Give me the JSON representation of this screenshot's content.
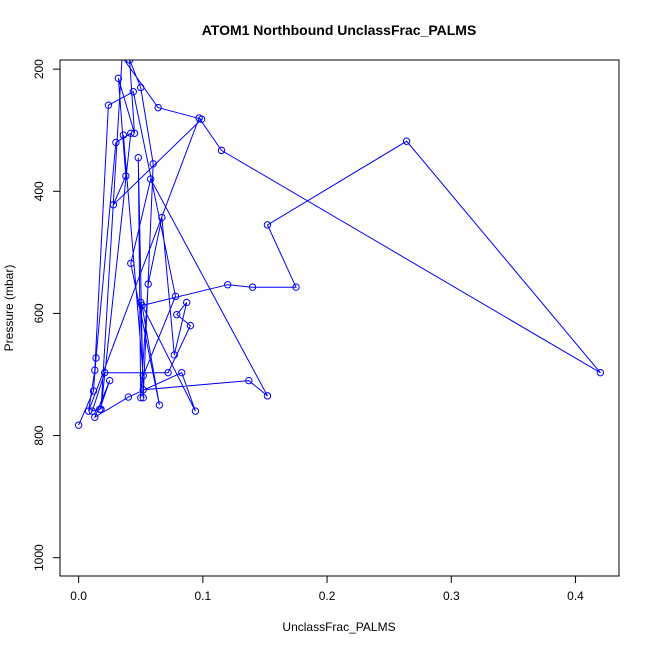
{
  "chart_data": {
    "type": "line",
    "title": "ATOM1 Northbound UnclassFrac_PALMS",
    "xlabel": "UnclassFrac_PALMS",
    "ylabel": "Pressure (mbar)",
    "xlim": [
      -0.015,
      0.435
    ],
    "ylim": [
      1030,
      185
    ],
    "y_reversed": true,
    "x_ticks": [
      0.0,
      0.1,
      0.2,
      0.3,
      0.4
    ],
    "x_tick_labels": [
      "0.0",
      "0.1",
      "0.2",
      "0.3",
      "0.4"
    ],
    "y_ticks": [
      200,
      400,
      600,
      800,
      1000
    ],
    "y_tick_labels": [
      "200",
      "400",
      "600",
      "800",
      "1000"
    ],
    "grid": false,
    "line_color": "#0000ff",
    "marker": "open-circle",
    "series": [
      {
        "x": [
          0.0,
          0.012,
          0.014,
          0.03,
          0.042,
          0.018,
          0.035,
          0.064,
          0.099,
          0.028,
          0.038,
          0.032,
          0.045,
          0.041,
          0.05,
          0.06,
          0.052,
          0.048,
          0.05,
          0.056,
          0.067,
          0.077,
          0.087,
          0.079,
          0.09,
          0.072,
          0.021,
          0.011,
          0.017,
          0.025,
          0.013,
          0.04,
          0.083,
          0.094,
          0.05,
          0.052,
          0.137,
          0.152,
          0.058,
          0.042,
          0.065,
          0.051,
          0.12,
          0.14,
          0.175,
          0.152,
          0.264,
          0.42,
          0.115,
          0.097,
          0.008,
          0.013,
          0.024,
          0.044,
          0.078,
          0.052,
          0.036
        ],
        "y": [
          783,
          727,
          673,
          320,
          305,
          757,
          180,
          263,
          282,
          422,
          375,
          215,
          305,
          185,
          230,
          355,
          738,
          345,
          738,
          552,
          443,
          668,
          582,
          602,
          620,
          697,
          697,
          760,
          757,
          710,
          770,
          737,
          697,
          760,
          582,
          725,
          710,
          735,
          380,
          518,
          750,
          587,
          553,
          557,
          557,
          455,
          318,
          697,
          333,
          280,
          760,
          693,
          259,
          237,
          572,
          702,
          308
        ]
      }
    ]
  }
}
